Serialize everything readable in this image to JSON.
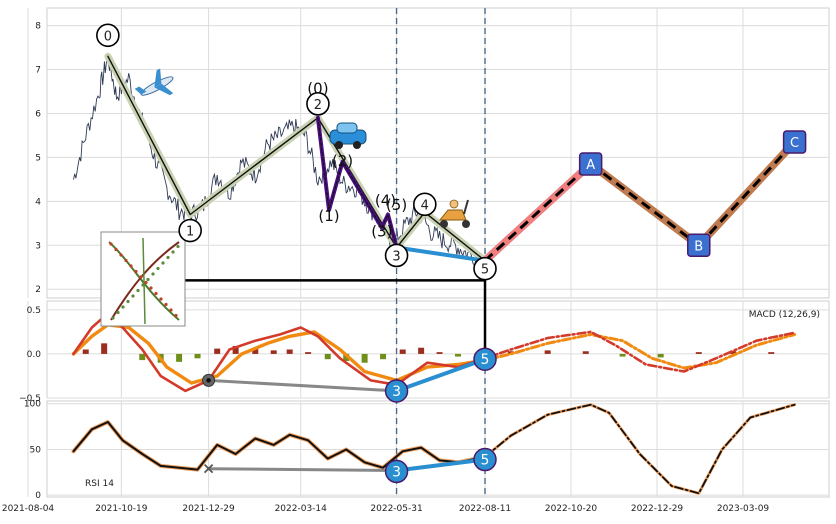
{
  "chart_data": {
    "type": "line",
    "x_ticks": [
      "2021-08-04",
      "2021-10-19",
      "2021-12-29",
      "2022-03-14",
      "2022-05-31",
      "2022-08-11",
      "2022-10-20",
      "2022-12-29",
      "2023-03-09"
    ],
    "price_panel": {
      "ylim": [
        1.8,
        8.4
      ],
      "yticks": [
        "2",
        "3",
        "4",
        "5",
        "6",
        "7",
        "8"
      ],
      "price_series": [
        {
          "x": "2021-09-10",
          "y": 4.5
        },
        {
          "x": "2021-09-20",
          "y": 5.5
        },
        {
          "x": "2021-10-01",
          "y": 6.5
        },
        {
          "x": "2021-10-08",
          "y": 7.3
        },
        {
          "x": "2021-10-15",
          "y": 6.4
        },
        {
          "x": "2021-10-25",
          "y": 6.8
        },
        {
          "x": "2021-11-05",
          "y": 5.8
        },
        {
          "x": "2021-11-15",
          "y": 5.0
        },
        {
          "x": "2021-11-25",
          "y": 4.3
        },
        {
          "x": "2021-12-05",
          "y": 3.8
        },
        {
          "x": "2021-12-15",
          "y": 3.7
        },
        {
          "x": "2021-12-25",
          "y": 3.9
        },
        {
          "x": "2022-01-05",
          "y": 4.6
        },
        {
          "x": "2022-01-15",
          "y": 4.2
        },
        {
          "x": "2022-01-25",
          "y": 4.9
        },
        {
          "x": "2022-02-05",
          "y": 4.6
        },
        {
          "x": "2022-02-15",
          "y": 5.3
        },
        {
          "x": "2022-02-25",
          "y": 5.5
        },
        {
          "x": "2022-03-08",
          "y": 5.7
        },
        {
          "x": "2022-03-18",
          "y": 5.5
        },
        {
          "x": "2022-03-28",
          "y": 4.5
        },
        {
          "x": "2022-04-08",
          "y": 4.9
        },
        {
          "x": "2022-04-18",
          "y": 4.4
        },
        {
          "x": "2022-04-28",
          "y": 4.3
        },
        {
          "x": "2022-05-08",
          "y": 3.9
        },
        {
          "x": "2022-05-18",
          "y": 3.5
        },
        {
          "x": "2022-05-28",
          "y": 3.0
        },
        {
          "x": "2022-06-08",
          "y": 3.5
        },
        {
          "x": "2022-06-18",
          "y": 3.8
        },
        {
          "x": "2022-06-28",
          "y": 3.3
        },
        {
          "x": "2022-07-08",
          "y": 3.1
        },
        {
          "x": "2022-07-18",
          "y": 3.0
        },
        {
          "x": "2022-07-28",
          "y": 2.8
        },
        {
          "x": "2022-08-11",
          "y": 2.7
        }
      ],
      "wave_nodes": [
        {
          "label": "0",
          "x": "2021-10-08",
          "y": 7.3
        },
        {
          "label": "1",
          "x": "2021-12-14",
          "y": 3.7
        },
        {
          "label": "2",
          "x": "2022-03-28",
          "y": 5.9
        },
        {
          "label": "3",
          "x": "2022-05-31",
          "y": 2.95
        },
        {
          "label": "4",
          "x": "2022-06-23",
          "y": 3.75
        },
        {
          "label": "5",
          "x": "2022-08-11",
          "y": 2.65
        }
      ],
      "subwave_labels": [
        {
          "label": "(0)",
          "x": "2022-03-28",
          "y": 6.45
        },
        {
          "label": "(1)",
          "x": "2022-04-06",
          "y": 3.55
        },
        {
          "label": "(2)",
          "x": "2022-04-17",
          "y": 4.8
        },
        {
          "label": "(3)",
          "x": "2022-05-19",
          "y": 3.2
        },
        {
          "label": "(4)",
          "x": "2022-05-22",
          "y": 3.9
        },
        {
          "label": "(5)",
          "x": "2022-05-31",
          "y": 3.8
        }
      ],
      "subwave_path": [
        {
          "x": "2022-03-28",
          "y": 5.9
        },
        {
          "x": "2022-04-06",
          "y": 3.8
        },
        {
          "x": "2022-04-17",
          "y": 4.9
        },
        {
          "x": "2022-05-19",
          "y": 3.4
        },
        {
          "x": "2022-05-24",
          "y": 3.7
        },
        {
          "x": "2022-05-31",
          "y": 2.95
        }
      ],
      "blue_trend": [
        {
          "x": "2022-05-31",
          "y": 2.95
        },
        {
          "x": "2022-08-11",
          "y": 2.65
        }
      ],
      "projection_nodes": [
        {
          "label": "A",
          "x": "2022-11-05",
          "y": 4.85
        },
        {
          "label": "B",
          "x": "2023-02-01",
          "y": 3.0
        },
        {
          "label": "C",
          "x": "2023-04-20",
          "y": 5.35
        }
      ],
      "hline_y": 2.2
    },
    "macd_panel": {
      "title": "MACD (12,26,9)",
      "ylim": [
        -0.5,
        0.6
      ],
      "yticks": [
        "0.5",
        "0.0",
        "−0.5"
      ],
      "macd_line": [
        {
          "x": "2021-09-10",
          "y": 0.0
        },
        {
          "x": "2021-09-25",
          "y": 0.3
        },
        {
          "x": "2021-10-08",
          "y": 0.46
        },
        {
          "x": "2021-10-20",
          "y": 0.3
        },
        {
          "x": "2021-11-05",
          "y": 0.05
        },
        {
          "x": "2021-11-20",
          "y": -0.25
        },
        {
          "x": "2021-12-10",
          "y": -0.42
        },
        {
          "x": "2021-12-29",
          "y": -0.3
        },
        {
          "x": "2022-01-15",
          "y": 0.05
        },
        {
          "x": "2022-02-05",
          "y": 0.15
        },
        {
          "x": "2022-02-25",
          "y": 0.22
        },
        {
          "x": "2022-03-14",
          "y": 0.3
        },
        {
          "x": "2022-03-28",
          "y": 0.2
        },
        {
          "x": "2022-04-15",
          "y": -0.05
        },
        {
          "x": "2022-05-10",
          "y": -0.3
        },
        {
          "x": "2022-05-31",
          "y": -0.35
        },
        {
          "x": "2022-06-25",
          "y": -0.1
        },
        {
          "x": "2022-07-20",
          "y": -0.15
        },
        {
          "x": "2022-08-11",
          "y": -0.05
        },
        {
          "x": "2022-09-01",
          "y": 0.05
        },
        {
          "x": "2022-10-01",
          "y": 0.18
        },
        {
          "x": "2022-11-05",
          "y": 0.25
        },
        {
          "x": "2022-11-25",
          "y": 0.1
        },
        {
          "x": "2022-12-20",
          "y": -0.12
        },
        {
          "x": "2023-01-20",
          "y": -0.2
        },
        {
          "x": "2023-02-15",
          "y": -0.05
        },
        {
          "x": "2023-03-20",
          "y": 0.15
        },
        {
          "x": "2023-04-20",
          "y": 0.24
        }
      ],
      "signal_line": [
        {
          "x": "2021-09-10",
          "y": 0.0
        },
        {
          "x": "2021-09-25",
          "y": 0.2
        },
        {
          "x": "2021-10-08",
          "y": 0.33
        },
        {
          "x": "2021-10-25",
          "y": 0.3
        },
        {
          "x": "2021-11-10",
          "y": 0.12
        },
        {
          "x": "2021-11-25",
          "y": -0.15
        },
        {
          "x": "2021-12-15",
          "y": -0.33
        },
        {
          "x": "2022-01-05",
          "y": -0.25
        },
        {
          "x": "2022-01-25",
          "y": 0.0
        },
        {
          "x": "2022-02-15",
          "y": 0.12
        },
        {
          "x": "2022-03-05",
          "y": 0.2
        },
        {
          "x": "2022-03-25",
          "y": 0.25
        },
        {
          "x": "2022-04-15",
          "y": 0.05
        },
        {
          "x": "2022-05-05",
          "y": -0.2
        },
        {
          "x": "2022-05-31",
          "y": -0.3
        },
        {
          "x": "2022-06-25",
          "y": -0.15
        },
        {
          "x": "2022-07-20",
          "y": -0.12
        },
        {
          "x": "2022-08-11",
          "y": -0.07
        },
        {
          "x": "2022-09-01",
          "y": 0.0
        },
        {
          "x": "2022-10-01",
          "y": 0.12
        },
        {
          "x": "2022-11-05",
          "y": 0.22
        },
        {
          "x": "2022-12-01",
          "y": 0.15
        },
        {
          "x": "2022-12-25",
          "y": -0.05
        },
        {
          "x": "2023-01-20",
          "y": -0.16
        },
        {
          "x": "2023-02-15",
          "y": -0.1
        },
        {
          "x": "2023-03-20",
          "y": 0.1
        },
        {
          "x": "2023-04-20",
          "y": 0.22
        }
      ],
      "histogram": [
        {
          "x": "2021-09-20",
          "y": 0.05
        },
        {
          "x": "2021-10-05",
          "y": 0.12
        },
        {
          "x": "2021-10-20",
          "y": 0.0
        },
        {
          "x": "2021-11-05",
          "y": -0.07
        },
        {
          "x": "2021-11-20",
          "y": -0.1
        },
        {
          "x": "2021-12-05",
          "y": -0.09
        },
        {
          "x": "2021-12-20",
          "y": -0.05
        },
        {
          "x": "2022-01-05",
          "y": 0.06
        },
        {
          "x": "2022-01-20",
          "y": 0.09
        },
        {
          "x": "2022-02-05",
          "y": 0.06
        },
        {
          "x": "2022-02-20",
          "y": 0.04
        },
        {
          "x": "2022-03-05",
          "y": 0.05
        },
        {
          "x": "2022-03-20",
          "y": 0.02
        },
        {
          "x": "2022-04-05",
          "y": -0.06
        },
        {
          "x": "2022-04-20",
          "y": -0.08
        },
        {
          "x": "2022-05-05",
          "y": -0.1
        },
        {
          "x": "2022-05-20",
          "y": -0.06
        },
        {
          "x": "2022-06-05",
          "y": 0.05
        },
        {
          "x": "2022-06-20",
          "y": 0.07
        },
        {
          "x": "2022-07-05",
          "y": 0.02
        },
        {
          "x": "2022-07-20",
          "y": -0.03
        },
        {
          "x": "2022-08-05",
          "y": 0.01
        },
        {
          "x": "2022-09-01",
          "y": 0.03
        },
        {
          "x": "2022-10-01",
          "y": 0.04
        },
        {
          "x": "2022-11-01",
          "y": 0.03
        },
        {
          "x": "2022-12-01",
          "y": -0.03
        },
        {
          "x": "2023-01-01",
          "y": -0.04
        },
        {
          "x": "2023-02-01",
          "y": 0.02
        },
        {
          "x": "2023-03-01",
          "y": 0.03
        },
        {
          "x": "2023-04-01",
          "y": 0.02
        }
      ],
      "gray_line": [
        {
          "x": "2021-12-29",
          "y": -0.3
        },
        {
          "x": "2022-05-31",
          "y": -0.42
        }
      ],
      "blue_trend": [
        {
          "x": "2022-05-31",
          "y": -0.42
        },
        {
          "x": "2022-08-11",
          "y": -0.06
        }
      ],
      "markers": [
        {
          "label": "3",
          "x": "2022-05-31",
          "y": -0.42
        },
        {
          "label": "5",
          "x": "2022-08-11",
          "y": -0.06
        }
      ]
    },
    "rsi_panel": {
      "title": "RSI 14",
      "ylim": [
        -2,
        103
      ],
      "yticks": [
        "100",
        "50",
        "0"
      ],
      "rsi_series": [
        {
          "x": "2021-09-10",
          "y": 48
        },
        {
          "x": "2021-09-25",
          "y": 72
        },
        {
          "x": "2021-10-08",
          "y": 80
        },
        {
          "x": "2021-10-20",
          "y": 60
        },
        {
          "x": "2021-11-05",
          "y": 45
        },
        {
          "x": "2021-11-20",
          "y": 32
        },
        {
          "x": "2021-12-05",
          "y": 30
        },
        {
          "x": "2021-12-20",
          "y": 28
        },
        {
          "x": "2022-01-05",
          "y": 55
        },
        {
          "x": "2022-01-20",
          "y": 45
        },
        {
          "x": "2022-02-05",
          "y": 62
        },
        {
          "x": "2022-02-20",
          "y": 55
        },
        {
          "x": "2022-03-05",
          "y": 66
        },
        {
          "x": "2022-03-20",
          "y": 60
        },
        {
          "x": "2022-04-05",
          "y": 40
        },
        {
          "x": "2022-04-20",
          "y": 50
        },
        {
          "x": "2022-05-05",
          "y": 36
        },
        {
          "x": "2022-05-20",
          "y": 30
        },
        {
          "x": "2022-06-05",
          "y": 48
        },
        {
          "x": "2022-06-20",
          "y": 52
        },
        {
          "x": "2022-07-05",
          "y": 38
        },
        {
          "x": "2022-07-20",
          "y": 36
        },
        {
          "x": "2022-08-11",
          "y": 42
        }
      ],
      "projection": [
        {
          "x": "2022-08-11",
          "y": 42
        },
        {
          "x": "2022-09-01",
          "y": 65
        },
        {
          "x": "2022-10-01",
          "y": 88
        },
        {
          "x": "2022-11-05",
          "y": 99
        },
        {
          "x": "2022-11-20",
          "y": 90
        },
        {
          "x": "2022-12-15",
          "y": 45
        },
        {
          "x": "2023-01-10",
          "y": 10
        },
        {
          "x": "2023-02-01",
          "y": 2
        },
        {
          "x": "2023-02-20",
          "y": 50
        },
        {
          "x": "2023-03-15",
          "y": 85
        },
        {
          "x": "2023-04-20",
          "y": 99
        }
      ],
      "gray_line": [
        {
          "x": "2021-12-29",
          "y": 29
        },
        {
          "x": "2022-05-31",
          "y": 27
        }
      ],
      "blue_trend": [
        {
          "x": "2022-05-31",
          "y": 27
        },
        {
          "x": "2022-08-11",
          "y": 39
        }
      ],
      "markers": [
        {
          "label": "3",
          "x": "2022-05-31",
          "y": 26
        },
        {
          "label": "5",
          "x": "2022-08-11",
          "y": 39
        }
      ]
    },
    "vlines": [
      "2022-05-31",
      "2022-08-11"
    ],
    "colors": {
      "wave_band": "#c9d3b3",
      "subwave": "#4b0f80",
      "blue_trend": "#2a8fd0",
      "pink_band": "#f08080",
      "brown_band": "#c07a50",
      "macd": "#d43a2a",
      "signal": "#f08a10",
      "hist_pos": "#9b2e1f",
      "hist_neg": "#6f8f1a",
      "vline": "#4a6a8a",
      "node_box": "#3a70d0",
      "price": "#2f3a55"
    },
    "icons": [
      "airplane-icon",
      "car-icon",
      "scooter-icon",
      "plant-thumbnail"
    ]
  }
}
